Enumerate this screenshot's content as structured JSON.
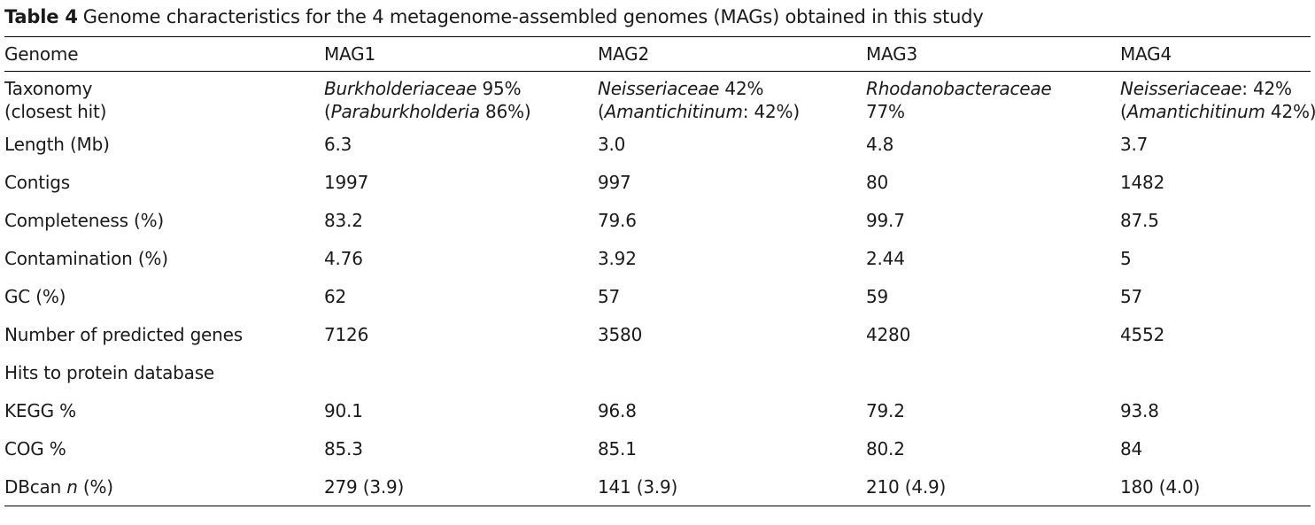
{
  "caption": {
    "label": "Table 4",
    "text": "Genome characteristics for the 4 metagenome-assembled genomes (MAGs) obtained in this study"
  },
  "header": [
    "Genome",
    "MAG1",
    "MAG2",
    "MAG3",
    "MAG4"
  ],
  "taxonomy": {
    "label_line1": "Taxonomy",
    "label_line2": "(closest hit)",
    "mag1": {
      "l1_it": "Burkholderiaceae",
      "l1_rest": " 95%",
      "l2_pre": "(",
      "l2_it": "Paraburkholderia",
      "l2_rest": " 86%)"
    },
    "mag2": {
      "l1_it": "Neisseriaceae",
      "l1_rest": " 42%",
      "l2_pre": "(",
      "l2_it": "Amantichitinum",
      "l2_rest": ": 42%)"
    },
    "mag3": {
      "l1_it": "Rhodanobacteraceae",
      "l1_rest": "",
      "l2_pre": "77%",
      "l2_it": "",
      "l2_rest": ""
    },
    "mag4": {
      "l1_it": "Neisseriaceae",
      "l1_rest": ": 42%",
      "l2_pre": "(",
      "l2_it": "Amantichitinum",
      "l2_rest": " 42%)"
    }
  },
  "rows": [
    {
      "label": "Length (Mb)",
      "values": [
        "6.3",
        "3.0",
        "4.8",
        "3.7"
      ]
    },
    {
      "label": "Contigs",
      "values": [
        "1997",
        "997",
        "80",
        "1482"
      ]
    },
    {
      "label": "Completeness (%)",
      "values": [
        "83.2",
        "79.6",
        "99.7",
        "87.5"
      ]
    },
    {
      "label": "Contamination (%)",
      "values": [
        "4.76",
        "3.92",
        "2.44",
        "5"
      ]
    },
    {
      "label": "GC (%)",
      "values": [
        "62",
        "57",
        "59",
        "57"
      ]
    },
    {
      "label": "Number of predicted genes",
      "values": [
        "7126",
        "3580",
        "4280",
        "4552"
      ]
    },
    {
      "label": "Hits to protein database",
      "values": [
        "",
        "",
        "",
        ""
      ]
    },
    {
      "label": "KEGG %",
      "values": [
        "90.1",
        "96.8",
        "79.2",
        "93.8"
      ]
    },
    {
      "label": "COG %",
      "values": [
        "85.3",
        "85.1",
        "80.2",
        "84"
      ]
    }
  ],
  "dbcan": {
    "label_pre": "DBcan ",
    "label_it": "n",
    "label_post": " (%)",
    "values": [
      "279 (3.9)",
      "141 (3.9)",
      "210 (4.9)",
      "180 (4.0)"
    ]
  }
}
